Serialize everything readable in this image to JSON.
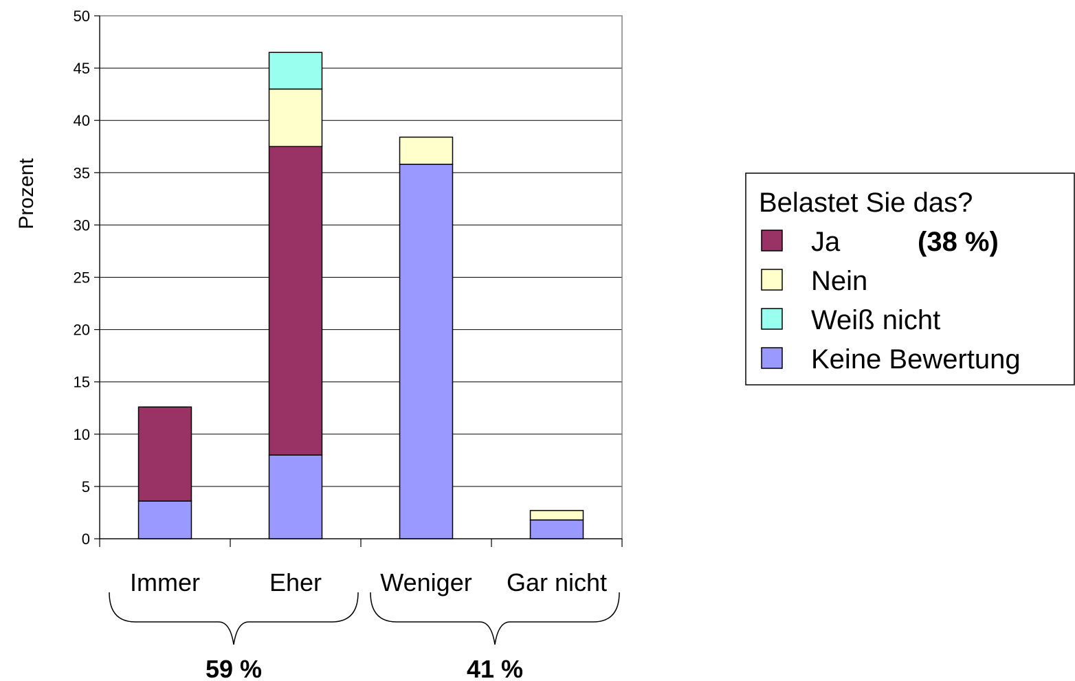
{
  "chart_data": {
    "type": "bar",
    "stacked": true,
    "ylabel": "Prozent",
    "ylim": [
      0,
      50
    ],
    "yticks": [
      0,
      5,
      10,
      15,
      20,
      25,
      30,
      35,
      40,
      45,
      50
    ],
    "grid": true,
    "categories": [
      "Immer",
      "Eher",
      "Weniger",
      "Gar nicht"
    ],
    "series": [
      {
        "name": "Keine Bewertung",
        "color": "#9999ff",
        "values": [
          3.6,
          8.0,
          35.8,
          1.8
        ]
      },
      {
        "name": "Ja",
        "color": "#993366",
        "values": [
          9.0,
          29.5,
          0,
          0
        ]
      },
      {
        "name": "Nein",
        "color": "#ffffcc",
        "values": [
          0,
          5.5,
          2.6,
          0.9
        ]
      },
      {
        "name": "Weiß nicht",
        "color": "#99ffee",
        "values": [
          0,
          3.5,
          0,
          0
        ]
      }
    ],
    "legend": {
      "title": "Belastet Sie das?",
      "placement": "right",
      "entries": [
        {
          "series": "Ja",
          "note": "(38 %)"
        },
        {
          "series": "Nein",
          "note": ""
        },
        {
          "series": "Weiß nicht",
          "note": ""
        },
        {
          "series": "Keine Bewertung",
          "note": ""
        }
      ]
    },
    "groups": [
      {
        "label": "59 %",
        "categories": [
          "Immer",
          "Eher"
        ]
      },
      {
        "label": "41 %",
        "categories": [
          "Weniger",
          "Gar nicht"
        ]
      }
    ]
  }
}
